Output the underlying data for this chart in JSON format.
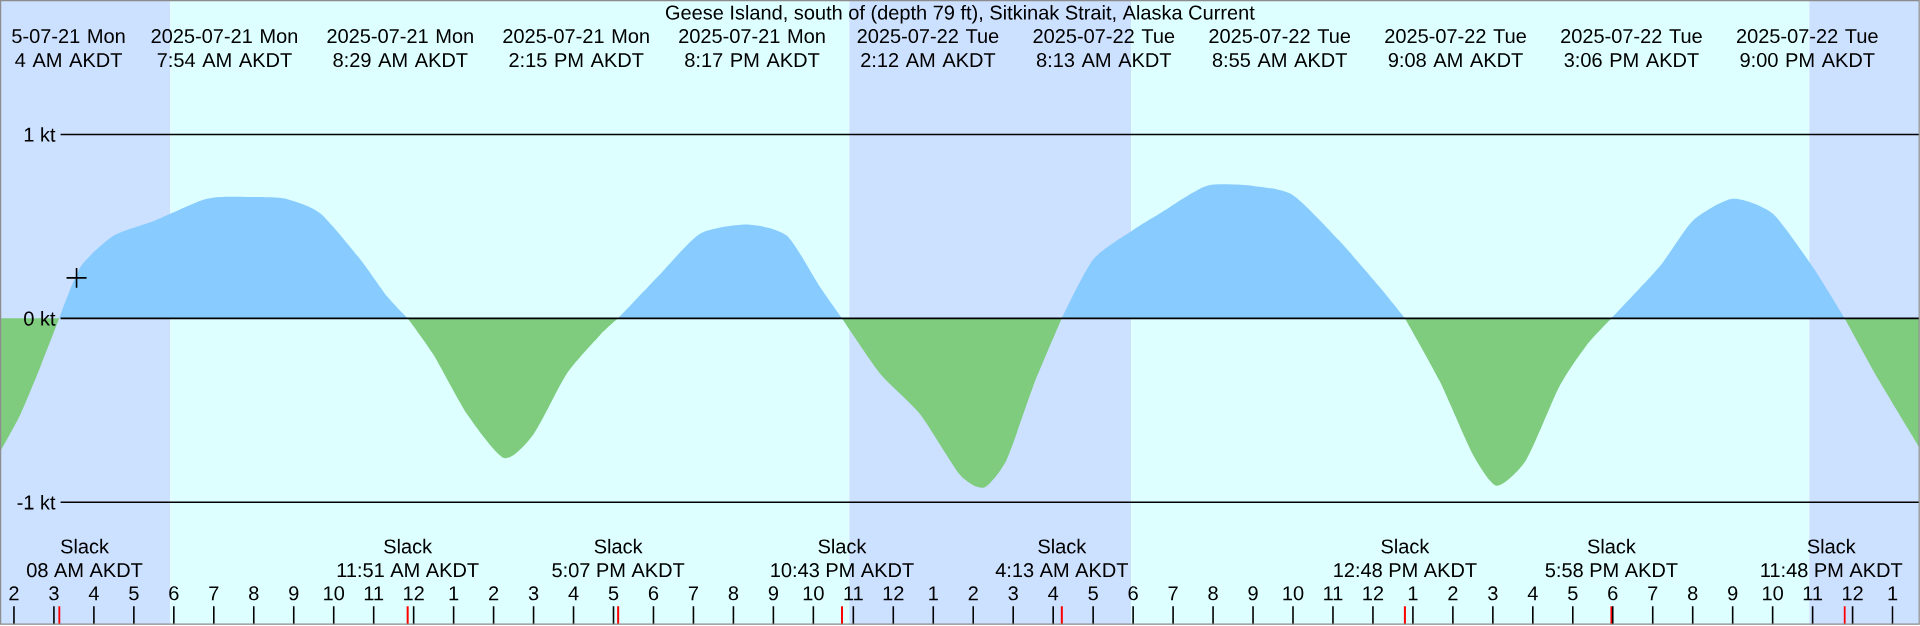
{
  "chart_data": {
    "type": "area",
    "title": "Geese Island, south of (depth 79 ft), Sitkinak Strait, Alaska Current",
    "xticks": [
      {
        "value": "2025-07-21T02:00",
        "label": "2"
      },
      {
        "value": "2025-07-21T03:00",
        "label": "3"
      },
      {
        "value": "2025-07-21T04:00",
        "label": "4"
      },
      {
        "value": "2025-07-21T05:00",
        "label": "5"
      },
      {
        "value": "2025-07-21T06:00",
        "label": "6"
      },
      {
        "value": "2025-07-21T07:00",
        "label": "7"
      },
      {
        "value": "2025-07-21T08:00",
        "label": "8"
      },
      {
        "value": "2025-07-21T09:00",
        "label": "9"
      },
      {
        "value": "2025-07-21T10:00",
        "label": "10"
      },
      {
        "value": "2025-07-21T11:00",
        "label": "11"
      },
      {
        "value": "2025-07-21T12:00",
        "label": "12"
      },
      {
        "value": "2025-07-21T13:00",
        "label": "1"
      },
      {
        "value": "2025-07-21T14:00",
        "label": "2"
      },
      {
        "value": "2025-07-21T15:00",
        "label": "3"
      },
      {
        "value": "2025-07-21T16:00",
        "label": "4"
      },
      {
        "value": "2025-07-21T17:00",
        "label": "5"
      },
      {
        "value": "2025-07-21T18:00",
        "label": "6"
      },
      {
        "value": "2025-07-21T19:00",
        "label": "7"
      },
      {
        "value": "2025-07-21T20:00",
        "label": "8"
      },
      {
        "value": "2025-07-21T21:00",
        "label": "9"
      },
      {
        "value": "2025-07-21T22:00",
        "label": "10"
      },
      {
        "value": "2025-07-21T23:00",
        "label": "11"
      },
      {
        "value": "2025-07-22T00:00",
        "label": "12"
      },
      {
        "value": "2025-07-22T01:00",
        "label": "1"
      },
      {
        "value": "2025-07-22T02:00",
        "label": "2"
      },
      {
        "value": "2025-07-22T03:00",
        "label": "3"
      },
      {
        "value": "2025-07-22T04:00",
        "label": "4"
      },
      {
        "value": "2025-07-22T05:00",
        "label": "5"
      },
      {
        "value": "2025-07-22T06:00",
        "label": "6"
      },
      {
        "value": "2025-07-22T07:00",
        "label": "7"
      },
      {
        "value": "2025-07-22T08:00",
        "label": "8"
      },
      {
        "value": "2025-07-22T09:00",
        "label": "9"
      },
      {
        "value": "2025-07-22T10:00",
        "label": "10"
      },
      {
        "value": "2025-07-22T11:00",
        "label": "11"
      },
      {
        "value": "2025-07-22T12:00",
        "label": "12"
      },
      {
        "value": "2025-07-22T13:00",
        "label": "1"
      },
      {
        "value": "2025-07-22T14:00",
        "label": "2"
      },
      {
        "value": "2025-07-22T15:00",
        "label": "3"
      },
      {
        "value": "2025-07-22T16:00",
        "label": "4"
      },
      {
        "value": "2025-07-22T17:00",
        "label": "5"
      },
      {
        "value": "2025-07-22T18:00",
        "label": "6"
      },
      {
        "value": "2025-07-22T19:00",
        "label": "7"
      },
      {
        "value": "2025-07-22T20:00",
        "label": "8"
      },
      {
        "value": "2025-07-22T21:00",
        "label": "9"
      },
      {
        "value": "2025-07-22T22:00",
        "label": "10"
      },
      {
        "value": "2025-07-22T23:00",
        "label": "11"
      },
      {
        "value": "2025-07-23T00:00",
        "label": "12"
      },
      {
        "value": "2025-07-23T01:00",
        "label": "1"
      }
    ],
    "xlim": [
      "2025-07-21T01:40",
      "2025-07-23T01:40"
    ],
    "ylim": [
      -1.663,
      1.728
    ],
    "yticks": [
      {
        "value": -1,
        "label": "-1 kt"
      },
      {
        "value": 0,
        "label": "0 kt"
      },
      {
        "value": 1,
        "label": "1 kt"
      }
    ],
    "grid": "y",
    "bands": [
      {
        "axis": "x",
        "from": "2025-07-21T01:40",
        "to": "2025-07-21T05:55",
        "color": "#cce0ff"
      },
      {
        "axis": "x",
        "from": "2025-07-21T05:55",
        "to": "2025-07-21T22:54",
        "color": "#ddffff"
      },
      {
        "axis": "x",
        "from": "2025-07-21T22:54",
        "to": "2025-07-22T05:57",
        "color": "#cce0ff"
      },
      {
        "axis": "x",
        "from": "2025-07-22T05:57",
        "to": "2025-07-22T22:55",
        "color": "#ddffff"
      },
      {
        "axis": "x",
        "from": "2025-07-22T22:55",
        "to": "2025-07-23T01:40",
        "color": "#cce0ff"
      }
    ],
    "series": [
      {
        "color": "#88ccff",
        "x": [
          "2025-07-21T03:08",
          "2025-07-21T03:40",
          "2025-07-21T04:30",
          "2025-07-21T05:30",
          "2025-07-21T06:40",
          "2025-07-21T07:10",
          "2025-07-21T07:54",
          "2025-07-21T08:48",
          "2025-07-21T09:40",
          "2025-07-21T10:40",
          "2025-07-21T11:20",
          "2025-07-21T11:51",
          "2025-07-21T14:30",
          "2025-07-21T17:07",
          "2025-07-21T18:10",
          "2025-07-21T19:10",
          "2025-07-21T20:20",
          "2025-07-21T21:20",
          "2025-07-21T22:10",
          "2025-07-21T22:43",
          "2025-07-22T01:00",
          "2025-07-22T04:13",
          "2025-07-22T05:00",
          "2025-07-22T06:00",
          "2025-07-22T06:40",
          "2025-07-22T07:50",
          "2025-07-22T09:00",
          "2025-07-22T10:00",
          "2025-07-22T11:10",
          "2025-07-22T12:10",
          "2025-07-22T12:48",
          "2025-07-22T15:00",
          "2025-07-22T17:58",
          "2025-07-22T19:10",
          "2025-07-22T20:00",
          "2025-07-22T21:00",
          "2025-07-22T22:00",
          "2025-07-22T23:00",
          "2025-07-22T23:48"
        ],
        "values": [
          0,
          0.28,
          0.45,
          0.53,
          0.64,
          0.66,
          0.66,
          0.65,
          0.57,
          0.32,
          0.12,
          0,
          null,
          0,
          0.24,
          0.46,
          0.51,
          0.45,
          0.17,
          0,
          null,
          0,
          0.32,
          0.48,
          0.57,
          0.72,
          0.72,
          0.67,
          0.42,
          0.17,
          0,
          null,
          0,
          0.28,
          0.53,
          0.65,
          0.57,
          0.28,
          0
        ]
      },
      {
        "color": "#7fcc7f",
        "x": [
          "2025-07-21T01:40",
          "2025-07-21T02:10",
          "2025-07-21T02:40",
          "2025-07-21T03:08",
          "2025-07-21T07:00",
          "2025-07-21T11:51",
          "2025-07-21T12:30",
          "2025-07-21T13:20",
          "2025-07-21T14:16",
          "2025-07-21T15:00",
          "2025-07-21T15:50",
          "2025-07-21T16:40",
          "2025-07-21T17:07",
          "2025-07-21T20:00",
          "2025-07-21T22:43",
          "2025-07-21T23:40",
          "2025-07-22T00:40",
          "2025-07-22T01:40",
          "2025-07-22T02:16",
          "2025-07-22T02:50",
          "2025-07-22T03:30",
          "2025-07-22T04:13",
          "2025-07-22T08:00",
          "2025-07-22T12:48",
          "2025-07-22T13:40",
          "2025-07-22T14:30",
          "2025-07-22T15:06",
          "2025-07-22T15:50",
          "2025-07-22T16:40",
          "2025-07-22T17:20",
          "2025-07-22T17:58",
          "2025-07-22T21:00",
          "2025-07-22T23:48",
          "2025-07-23T00:40",
          "2025-07-23T01:40"
        ],
        "values": [
          -0.72,
          -0.52,
          -0.26,
          0,
          null,
          0,
          -0.2,
          -0.52,
          -0.76,
          -0.63,
          -0.3,
          -0.09,
          0,
          null,
          0,
          -0.3,
          -0.52,
          -0.85,
          -0.92,
          -0.77,
          -0.37,
          0,
          null,
          0,
          -0.34,
          -0.74,
          -0.91,
          -0.77,
          -0.37,
          -0.15,
          0,
          null,
          0,
          -0.34,
          -0.7
        ]
      },
      {
        "type": "scatter",
        "marker": "cross",
        "color": "#000000",
        "x": [
          "2025-07-21T03:34"
        ],
        "values": [
          0.22
        ]
      }
    ],
    "annotations": [
      "5-07-21 Mon 4 AM AKDT",
      "2025-07-21 Mon 7:54 AM AKDT",
      "2025-07-21 Mon 8:29 AM AKDT",
      "2025-07-21 Mon 2:15 PM AKDT",
      "2025-07-21 Mon 8:17 PM AKDT",
      "2025-07-22 Tue 2:12 AM AKDT",
      "2025-07-22 Tue 8:13 AM AKDT",
      "2025-07-22 Tue 8:55 AM AKDT",
      "2025-07-22 Tue 9:08 AM AKDT",
      "2025-07-22 Tue 3:06 PM AKDT",
      "2025-07-22 Tue 9:00 PM AKDT",
      "Slack",
      "08 AM AKDT",
      "Slack",
      "11:51 AM AKDT",
      "Slack",
      "5:07 PM AKDT",
      "Slack",
      "10:43 PM AKDT",
      "Slack",
      "4:13 AM AKDT",
      "Slack",
      "12:48 PM AKDT",
      "Slack",
      "5:58 PM AKDT",
      "Slack",
      "11:48 PM AKDT"
    ]
  }
}
